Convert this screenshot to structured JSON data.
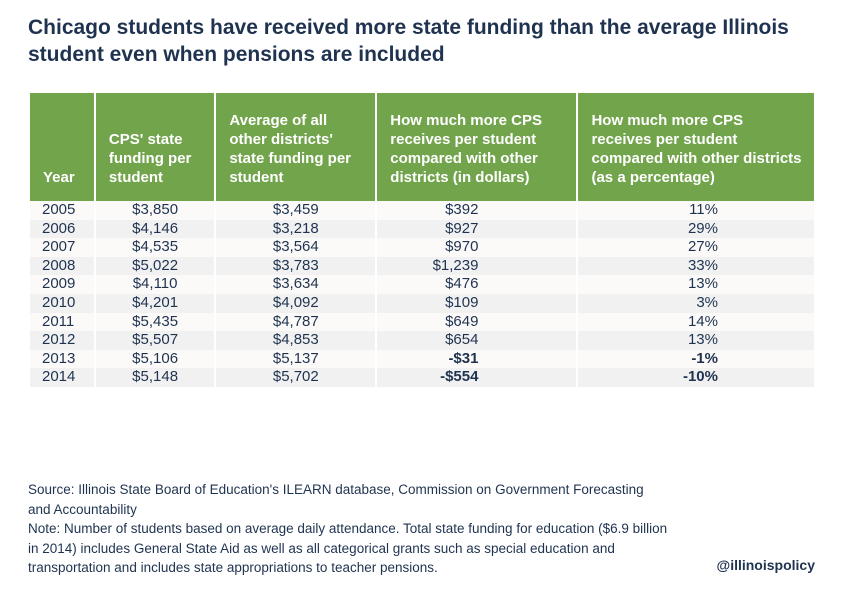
{
  "title": "Chicago students have received more state funding than the average Illinois student even when pensions are included",
  "table": {
    "headers": [
      "Year",
      "CPS' state funding per student",
      "Average of all other districts' state funding per student",
      "How much more CPS receives per student compared with other districts (in dollars)",
      "How much more CPS receives per student compared with other districts (as a percentage)"
    ],
    "rows": [
      [
        "2005",
        "$3,850",
        "$3,459",
        "$392",
        "11%"
      ],
      [
        "2006",
        "$4,146",
        "$3,218",
        "$927",
        "29%"
      ],
      [
        "2007",
        "$4,535",
        "$3,564",
        "$970",
        "27%"
      ],
      [
        "2008",
        "$5,022",
        "$3,783",
        "$1,239",
        "33%"
      ],
      [
        "2009",
        "$4,110",
        "$3,634",
        "$476",
        "13%"
      ],
      [
        "2010",
        "$4,201",
        "$4,092",
        "$109",
        "3%"
      ],
      [
        "2011",
        "$5,435",
        "$4,787",
        "$649",
        "14%"
      ],
      [
        "2012",
        "$5,507",
        "$4,853",
        "$654",
        "13%"
      ],
      [
        "2013",
        "$5,106",
        "$5,137",
        "-$31",
        "-1%"
      ],
      [
        "2014",
        "$5,148",
        "$5,702",
        "-$554",
        "-10%"
      ]
    ]
  },
  "footer": {
    "source": "Source: Illinois State Board of Education's ILEARN database, Commission on Government Forecasting and Accountability",
    "note": "Note: Number of students based on average daily attendance. Total state funding for education ($6.9 billion in 2014) includes General State Aid as well as all categorical grants such as special education and transportation and includes state appropriations to teacher pensions.",
    "handle": "@illinoispolicy"
  },
  "colors": {
    "header": "#72a44c",
    "text": "#1f3350"
  }
}
